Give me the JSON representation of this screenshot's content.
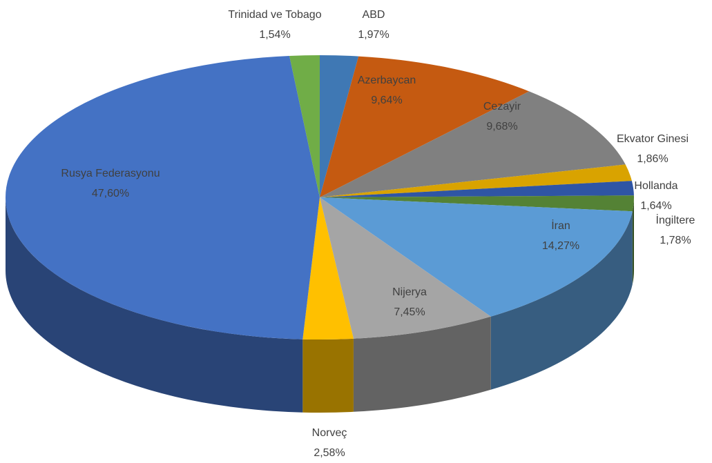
{
  "chart_data": {
    "type": "pie",
    "categories": [
      "ABD",
      "Azerbaycan",
      "Cezayir",
      "Ekvator Ginesi",
      "Hollanda",
      "İngiltere",
      "İran",
      "Nijerya",
      "Norveç",
      "Rusya Federasyonu",
      "Trinidad ve Tobago"
    ],
    "values": [
      1.97,
      9.64,
      9.68,
      1.86,
      1.64,
      1.78,
      14.27,
      7.45,
      2.58,
      47.6,
      1.54
    ],
    "value_labels": [
      "1,97%",
      "9,64%",
      "9,68%",
      "1,86%",
      "1,64%",
      "1,78%",
      "14,27%",
      "7,45%",
      "2,58%",
      "47,60%",
      "1,54%"
    ],
    "colors": [
      "#3f78b4",
      "#c55a11",
      "#808080",
      "#d9a300",
      "#2f55a4",
      "#548235",
      "#5b9bd5",
      "#a5a5a5",
      "#ffc000",
      "#4472c4",
      "#70ad47"
    ]
  }
}
